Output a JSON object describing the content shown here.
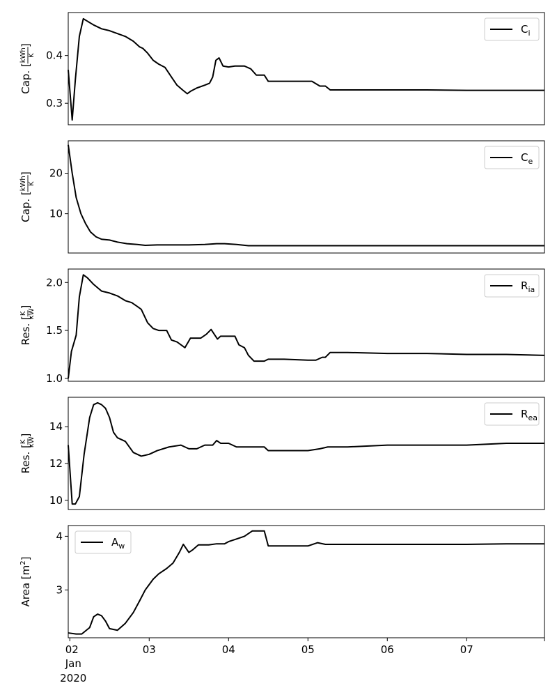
{
  "chart_data": [
    {
      "type": "line",
      "ylabel": "Cap.",
      "yunit_num": "kWh",
      "yunit_den": "K",
      "ylim": [
        0.255,
        0.49
      ],
      "yticks": [
        "0.3",
        "0.4"
      ],
      "ytick_values": [
        0.3,
        0.4
      ],
      "legend_position": "top-right",
      "series": [
        {
          "name_main": "C",
          "name_sub": "i",
          "x": [
            1.98,
            2.03,
            2.07,
            2.12,
            2.17,
            2.22,
            2.3,
            2.4,
            2.5,
            2.6,
            2.7,
            2.8,
            2.88,
            2.92,
            2.98,
            3.05,
            3.12,
            3.2,
            3.28,
            3.35,
            3.42,
            3.48,
            3.52,
            3.6,
            3.7,
            3.76,
            3.8,
            3.84,
            3.88,
            3.93,
            4.0,
            4.08,
            4.2,
            4.28,
            4.35,
            4.45,
            4.5,
            4.6,
            4.75,
            4.9,
            5.05,
            5.15,
            5.22,
            5.28,
            5.5,
            6.0,
            6.5,
            7.0,
            7.5,
            7.98
          ],
          "values": [
            0.37,
            0.265,
            0.35,
            0.44,
            0.477,
            0.472,
            0.464,
            0.456,
            0.452,
            0.446,
            0.44,
            0.43,
            0.418,
            0.415,
            0.405,
            0.39,
            0.382,
            0.375,
            0.355,
            0.338,
            0.328,
            0.32,
            0.325,
            0.332,
            0.338,
            0.342,
            0.355,
            0.39,
            0.395,
            0.378,
            0.376,
            0.378,
            0.378,
            0.372,
            0.359,
            0.359,
            0.346,
            0.346,
            0.346,
            0.346,
            0.346,
            0.336,
            0.336,
            0.328,
            0.328,
            0.328,
            0.328,
            0.327,
            0.327,
            0.327
          ]
        }
      ]
    },
    {
      "type": "line",
      "ylabel": "Cap.",
      "yunit_num": "kWh",
      "yunit_den": "K",
      "ylim": [
        0.3,
        28
      ],
      "yticks": [
        "10",
        "20"
      ],
      "ytick_values": [
        10,
        20
      ],
      "legend_position": "top-right",
      "series": [
        {
          "name_main": "C",
          "name_sub": "e",
          "x": [
            1.98,
            2.03,
            2.08,
            2.14,
            2.2,
            2.26,
            2.33,
            2.4,
            2.5,
            2.6,
            2.72,
            2.85,
            2.95,
            3.1,
            3.3,
            3.5,
            3.7,
            3.85,
            3.95,
            4.1,
            4.25,
            4.4,
            4.6,
            5.0,
            5.2,
            5.4,
            6.0,
            7.0,
            7.98
          ],
          "values": [
            27,
            20,
            14,
            10,
            7.5,
            5.5,
            4.3,
            3.7,
            3.5,
            3.0,
            2.6,
            2.4,
            2.2,
            2.3,
            2.3,
            2.3,
            2.4,
            2.6,
            2.6,
            2.4,
            2.1,
            2.1,
            2.1,
            2.1,
            2.1,
            2.1,
            2.1,
            2.1,
            2.1
          ]
        }
      ]
    },
    {
      "type": "line",
      "ylabel": "Res.",
      "yunit_num": "K",
      "yunit_den": "kW",
      "ylim": [
        0.97,
        2.14
      ],
      "yticks": [
        "1.0",
        "1.5",
        "2.0"
      ],
      "ytick_values": [
        1.0,
        1.5,
        2.0
      ],
      "legend_position": "top-right",
      "series": [
        {
          "name_main": "R",
          "name_sub": "ia",
          "x": [
            1.98,
            2.02,
            2.08,
            2.12,
            2.17,
            2.22,
            2.3,
            2.4,
            2.5,
            2.6,
            2.7,
            2.78,
            2.85,
            2.9,
            2.98,
            3.05,
            3.12,
            3.22,
            3.28,
            3.35,
            3.45,
            3.52,
            3.58,
            3.65,
            3.72,
            3.78,
            3.82,
            3.86,
            3.9,
            4.0,
            4.08,
            4.13,
            4.2,
            4.25,
            4.32,
            4.4,
            4.45,
            4.5,
            4.7,
            5.0,
            5.1,
            5.18,
            5.22,
            5.28,
            5.5,
            6.0,
            6.5,
            7.0,
            7.5,
            7.98
          ],
          "values": [
            1.0,
            1.28,
            1.45,
            1.85,
            2.08,
            2.05,
            1.98,
            1.91,
            1.89,
            1.86,
            1.81,
            1.79,
            1.75,
            1.72,
            1.58,
            1.52,
            1.5,
            1.5,
            1.4,
            1.38,
            1.32,
            1.42,
            1.42,
            1.42,
            1.46,
            1.51,
            1.46,
            1.41,
            1.44,
            1.44,
            1.44,
            1.35,
            1.32,
            1.24,
            1.18,
            1.18,
            1.18,
            1.2,
            1.2,
            1.19,
            1.19,
            1.22,
            1.22,
            1.27,
            1.27,
            1.26,
            1.26,
            1.25,
            1.25,
            1.24
          ]
        }
      ]
    },
    {
      "type": "line",
      "ylabel": "Res.",
      "yunit_num": "K",
      "yunit_den": "kW",
      "ylim": [
        9.5,
        15.6
      ],
      "yticks": [
        "10",
        "12",
        "14"
      ],
      "ytick_values": [
        10,
        12,
        14
      ],
      "legend_position": "top-right",
      "series": [
        {
          "name_main": "R",
          "name_sub": "ea",
          "x": [
            1.98,
            2.03,
            2.07,
            2.12,
            2.18,
            2.25,
            2.3,
            2.35,
            2.4,
            2.45,
            2.5,
            2.55,
            2.6,
            2.7,
            2.8,
            2.9,
            3.0,
            3.1,
            3.25,
            3.4,
            3.5,
            3.6,
            3.7,
            3.8,
            3.85,
            3.9,
            4.0,
            4.1,
            4.2,
            4.3,
            4.45,
            4.5,
            4.7,
            5.0,
            5.15,
            5.25,
            5.5,
            6.0,
            6.5,
            7.0,
            7.5,
            7.98
          ],
          "values": [
            13.0,
            9.8,
            9.8,
            10.2,
            12.5,
            14.5,
            15.2,
            15.3,
            15.2,
            15.0,
            14.5,
            13.7,
            13.4,
            13.2,
            12.6,
            12.4,
            12.5,
            12.7,
            12.9,
            13.0,
            12.8,
            12.8,
            13.0,
            13.0,
            13.25,
            13.1,
            13.1,
            12.9,
            12.9,
            12.9,
            12.9,
            12.7,
            12.7,
            12.7,
            12.8,
            12.9,
            12.9,
            13.0,
            13.0,
            13.0,
            13.1,
            13.1
          ]
        }
      ]
    },
    {
      "type": "line",
      "ylabel": "Area",
      "yunit": "m",
      "yunit_sup": "2",
      "ylim": [
        2.11,
        4.2
      ],
      "yticks": [
        "3",
        "4"
      ],
      "ytick_values": [
        3,
        4
      ],
      "legend_position": "top-left",
      "series": [
        {
          "name_main": "A",
          "name_sub": "w",
          "x": [
            1.98,
            2.08,
            2.15,
            2.25,
            2.3,
            2.35,
            2.4,
            2.45,
            2.5,
            2.6,
            2.7,
            2.8,
            2.88,
            2.95,
            3.0,
            3.05,
            3.12,
            3.22,
            3.3,
            3.38,
            3.43,
            3.5,
            3.55,
            3.62,
            3.75,
            3.85,
            3.95,
            4.0,
            4.1,
            4.2,
            4.3,
            4.45,
            4.5,
            4.7,
            5.0,
            5.12,
            5.22,
            5.5,
            6.0,
            6.5,
            7.0,
            7.5,
            7.98
          ],
          "values": [
            2.2,
            2.18,
            2.18,
            2.3,
            2.5,
            2.55,
            2.52,
            2.42,
            2.28,
            2.25,
            2.38,
            2.58,
            2.8,
            3.0,
            3.1,
            3.2,
            3.3,
            3.4,
            3.5,
            3.7,
            3.85,
            3.7,
            3.75,
            3.84,
            3.84,
            3.86,
            3.86,
            3.9,
            3.95,
            4.0,
            4.1,
            4.1,
            3.82,
            3.82,
            3.82,
            3.88,
            3.85,
            3.85,
            3.85,
            3.85,
            3.85,
            3.86,
            3.86
          ]
        }
      ]
    }
  ],
  "xaxis": {
    "xlim": [
      1.98,
      7.98
    ],
    "ticks": [
      "02",
      "03",
      "04",
      "05",
      "06",
      "07"
    ],
    "tick_values": [
      2,
      3,
      4,
      5,
      6,
      7
    ],
    "minor_tick_values": [
      7.98
    ],
    "month_label": "Jan",
    "year_label": "2020"
  },
  "style": {
    "line_color": "#000000",
    "frame_color": "#000000",
    "legend_border_color": "#cccccc"
  }
}
